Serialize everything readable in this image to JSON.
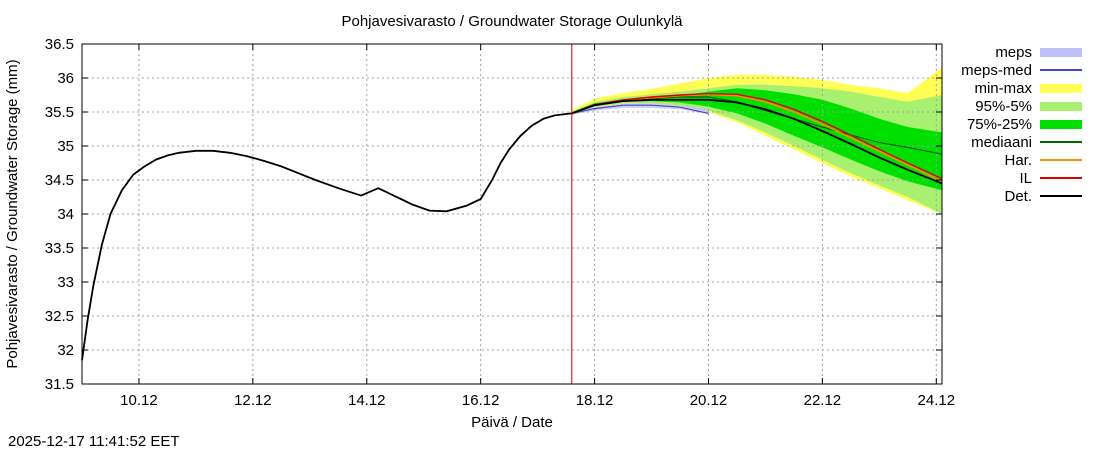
{
  "chart_data": {
    "type": "line",
    "title": "Pohjavesivarasto / Groundwater Storage   Oulunkylä",
    "xlabel": "Päivä / Date",
    "ylabel": "Pohjavesivarasto / Groundwater Storage (mm)",
    "timestamp": "2025-12-17 11:41:52 EET",
    "x_unit": "days since 09.12 00:00",
    "xlim": [
      0,
      15.1
    ],
    "ylim": [
      31.5,
      36.5
    ],
    "y_ticks": [
      31.5,
      32,
      32.5,
      33,
      33.5,
      34,
      34.5,
      35,
      35.5,
      36,
      36.5
    ],
    "y_tick_labels": [
      "31.5",
      "32",
      "32.5",
      "33",
      "33.5",
      "34",
      "34.5",
      "35",
      "35.5",
      "36",
      "36.5"
    ],
    "x_ticks": [
      1,
      3,
      5,
      7,
      9,
      11,
      13,
      15
    ],
    "x_tick_labels": [
      "10.12",
      "12.12",
      "14.12",
      "16.12",
      "18.12",
      "20.12",
      "22.12",
      "24.12"
    ],
    "grid": true,
    "forecast_start": 8.6,
    "colors": {
      "meps": "#c0c0f8",
      "meps_med": "#4444cc",
      "min_max": "#ffff55",
      "p95_5": "#a8f070",
      "p75_25": "#00e000",
      "mediaani": "#006400",
      "har": "#ff8c00",
      "il": "#dd0000",
      "det": "#000000",
      "vline": "#cc0000",
      "grid": "#a0a0a0"
    },
    "legend": [
      {
        "key": "meps",
        "label": "meps",
        "style": "band"
      },
      {
        "key": "meps_med",
        "label": "meps-med",
        "style": "line"
      },
      {
        "key": "min_max",
        "label": "min-max",
        "style": "band"
      },
      {
        "key": "p95_5",
        "label": "95%-5%",
        "style": "band"
      },
      {
        "key": "p75_25",
        "label": "75%-25%",
        "style": "band"
      },
      {
        "key": "mediaani",
        "label": "mediaani",
        "style": "line"
      },
      {
        "key": "har",
        "label": "Har.",
        "style": "line"
      },
      {
        "key": "il",
        "label": "IL",
        "style": "line"
      },
      {
        "key": "det",
        "label": "Det.",
        "style": "line"
      }
    ],
    "observed": {
      "x": [
        0,
        0.1,
        0.2,
        0.35,
        0.5,
        0.7,
        0.9,
        1.1,
        1.3,
        1.5,
        1.7,
        2.0,
        2.3,
        2.6,
        2.9,
        3.2,
        3.5,
        3.8,
        4.1,
        4.5,
        4.9,
        5.2,
        5.35,
        5.45,
        5.6,
        5.8,
        6.1,
        6.4,
        6.75,
        7.0,
        7.2,
        7.35,
        7.5,
        7.7,
        7.9,
        8.1,
        8.3,
        8.5,
        8.6
      ],
      "y": [
        31.85,
        32.45,
        32.95,
        33.55,
        34.0,
        34.35,
        34.58,
        34.7,
        34.8,
        34.86,
        34.9,
        34.93,
        34.93,
        34.9,
        34.85,
        34.78,
        34.7,
        34.6,
        34.5,
        34.38,
        34.27,
        34.38,
        34.32,
        34.28,
        34.22,
        34.14,
        34.05,
        34.04,
        34.12,
        34.22,
        34.5,
        34.75,
        34.95,
        35.15,
        35.3,
        35.4,
        35.45,
        35.47,
        35.48
      ]
    },
    "forecast_x": [
      8.6,
      9.0,
      9.5,
      10.0,
      10.5,
      11.0,
      11.5,
      12.0,
      12.5,
      13.0,
      13.5,
      14.0,
      14.5,
      15.1
    ],
    "bands": {
      "min_max": {
        "lower": [
          35.45,
          35.55,
          35.62,
          35.62,
          35.58,
          35.5,
          35.35,
          35.15,
          34.95,
          34.75,
          34.55,
          34.38,
          34.2,
          34.0
        ],
        "upper": [
          35.52,
          35.7,
          35.78,
          35.84,
          35.92,
          36.0,
          36.05,
          36.05,
          36.02,
          35.97,
          35.9,
          35.85,
          35.78,
          36.15
        ]
      },
      "p95_5": {
        "lower": [
          35.47,
          35.57,
          35.63,
          35.63,
          35.6,
          35.52,
          35.38,
          35.2,
          35.0,
          34.8,
          34.6,
          34.42,
          34.25,
          34.0
        ],
        "upper": [
          35.5,
          35.65,
          35.72,
          35.76,
          35.8,
          35.85,
          35.9,
          35.9,
          35.88,
          35.85,
          35.8,
          35.72,
          35.65,
          35.75
        ]
      },
      "p75_25": {
        "lower": [
          35.48,
          35.6,
          35.65,
          35.66,
          35.64,
          35.58,
          35.48,
          35.33,
          35.15,
          34.98,
          34.8,
          34.63,
          34.48,
          34.35
        ],
        "upper": [
          35.5,
          35.63,
          35.68,
          35.72,
          35.74,
          35.8,
          35.85,
          35.82,
          35.76,
          35.68,
          35.55,
          35.4,
          35.28,
          35.2
        ]
      },
      "meps": {
        "lower": [
          35.46,
          35.52,
          35.56,
          35.56,
          35.54,
          35.47
        ],
        "upper": [
          35.5,
          35.57,
          35.62,
          35.63,
          35.6,
          35.55
        ]
      }
    },
    "meps_x": [
      8.6,
      9.0,
      9.5,
      10.0,
      10.5,
      11.0
    ],
    "lines": {
      "meps_med": [
        35.48,
        35.55,
        35.6,
        35.6,
        35.57,
        35.48
      ],
      "mediaani": [
        35.48,
        35.61,
        35.66,
        35.7,
        35.72,
        35.72,
        35.65,
        35.52,
        35.4,
        35.28,
        35.16,
        35.05,
        34.98,
        34.88
      ],
      "har": [
        35.48,
        35.6,
        35.67,
        35.71,
        35.74,
        35.76,
        35.74,
        35.65,
        35.5,
        35.32,
        35.12,
        34.92,
        34.72,
        34.48
      ],
      "il": [
        35.48,
        35.61,
        35.68,
        35.72,
        35.75,
        35.77,
        35.76,
        35.68,
        35.54,
        35.36,
        35.16,
        34.95,
        34.75,
        34.52
      ],
      "det": [
        35.48,
        35.6,
        35.66,
        35.68,
        35.68,
        35.68,
        35.64,
        35.54,
        35.4,
        35.22,
        35.03,
        34.83,
        34.65,
        34.45
      ]
    }
  }
}
